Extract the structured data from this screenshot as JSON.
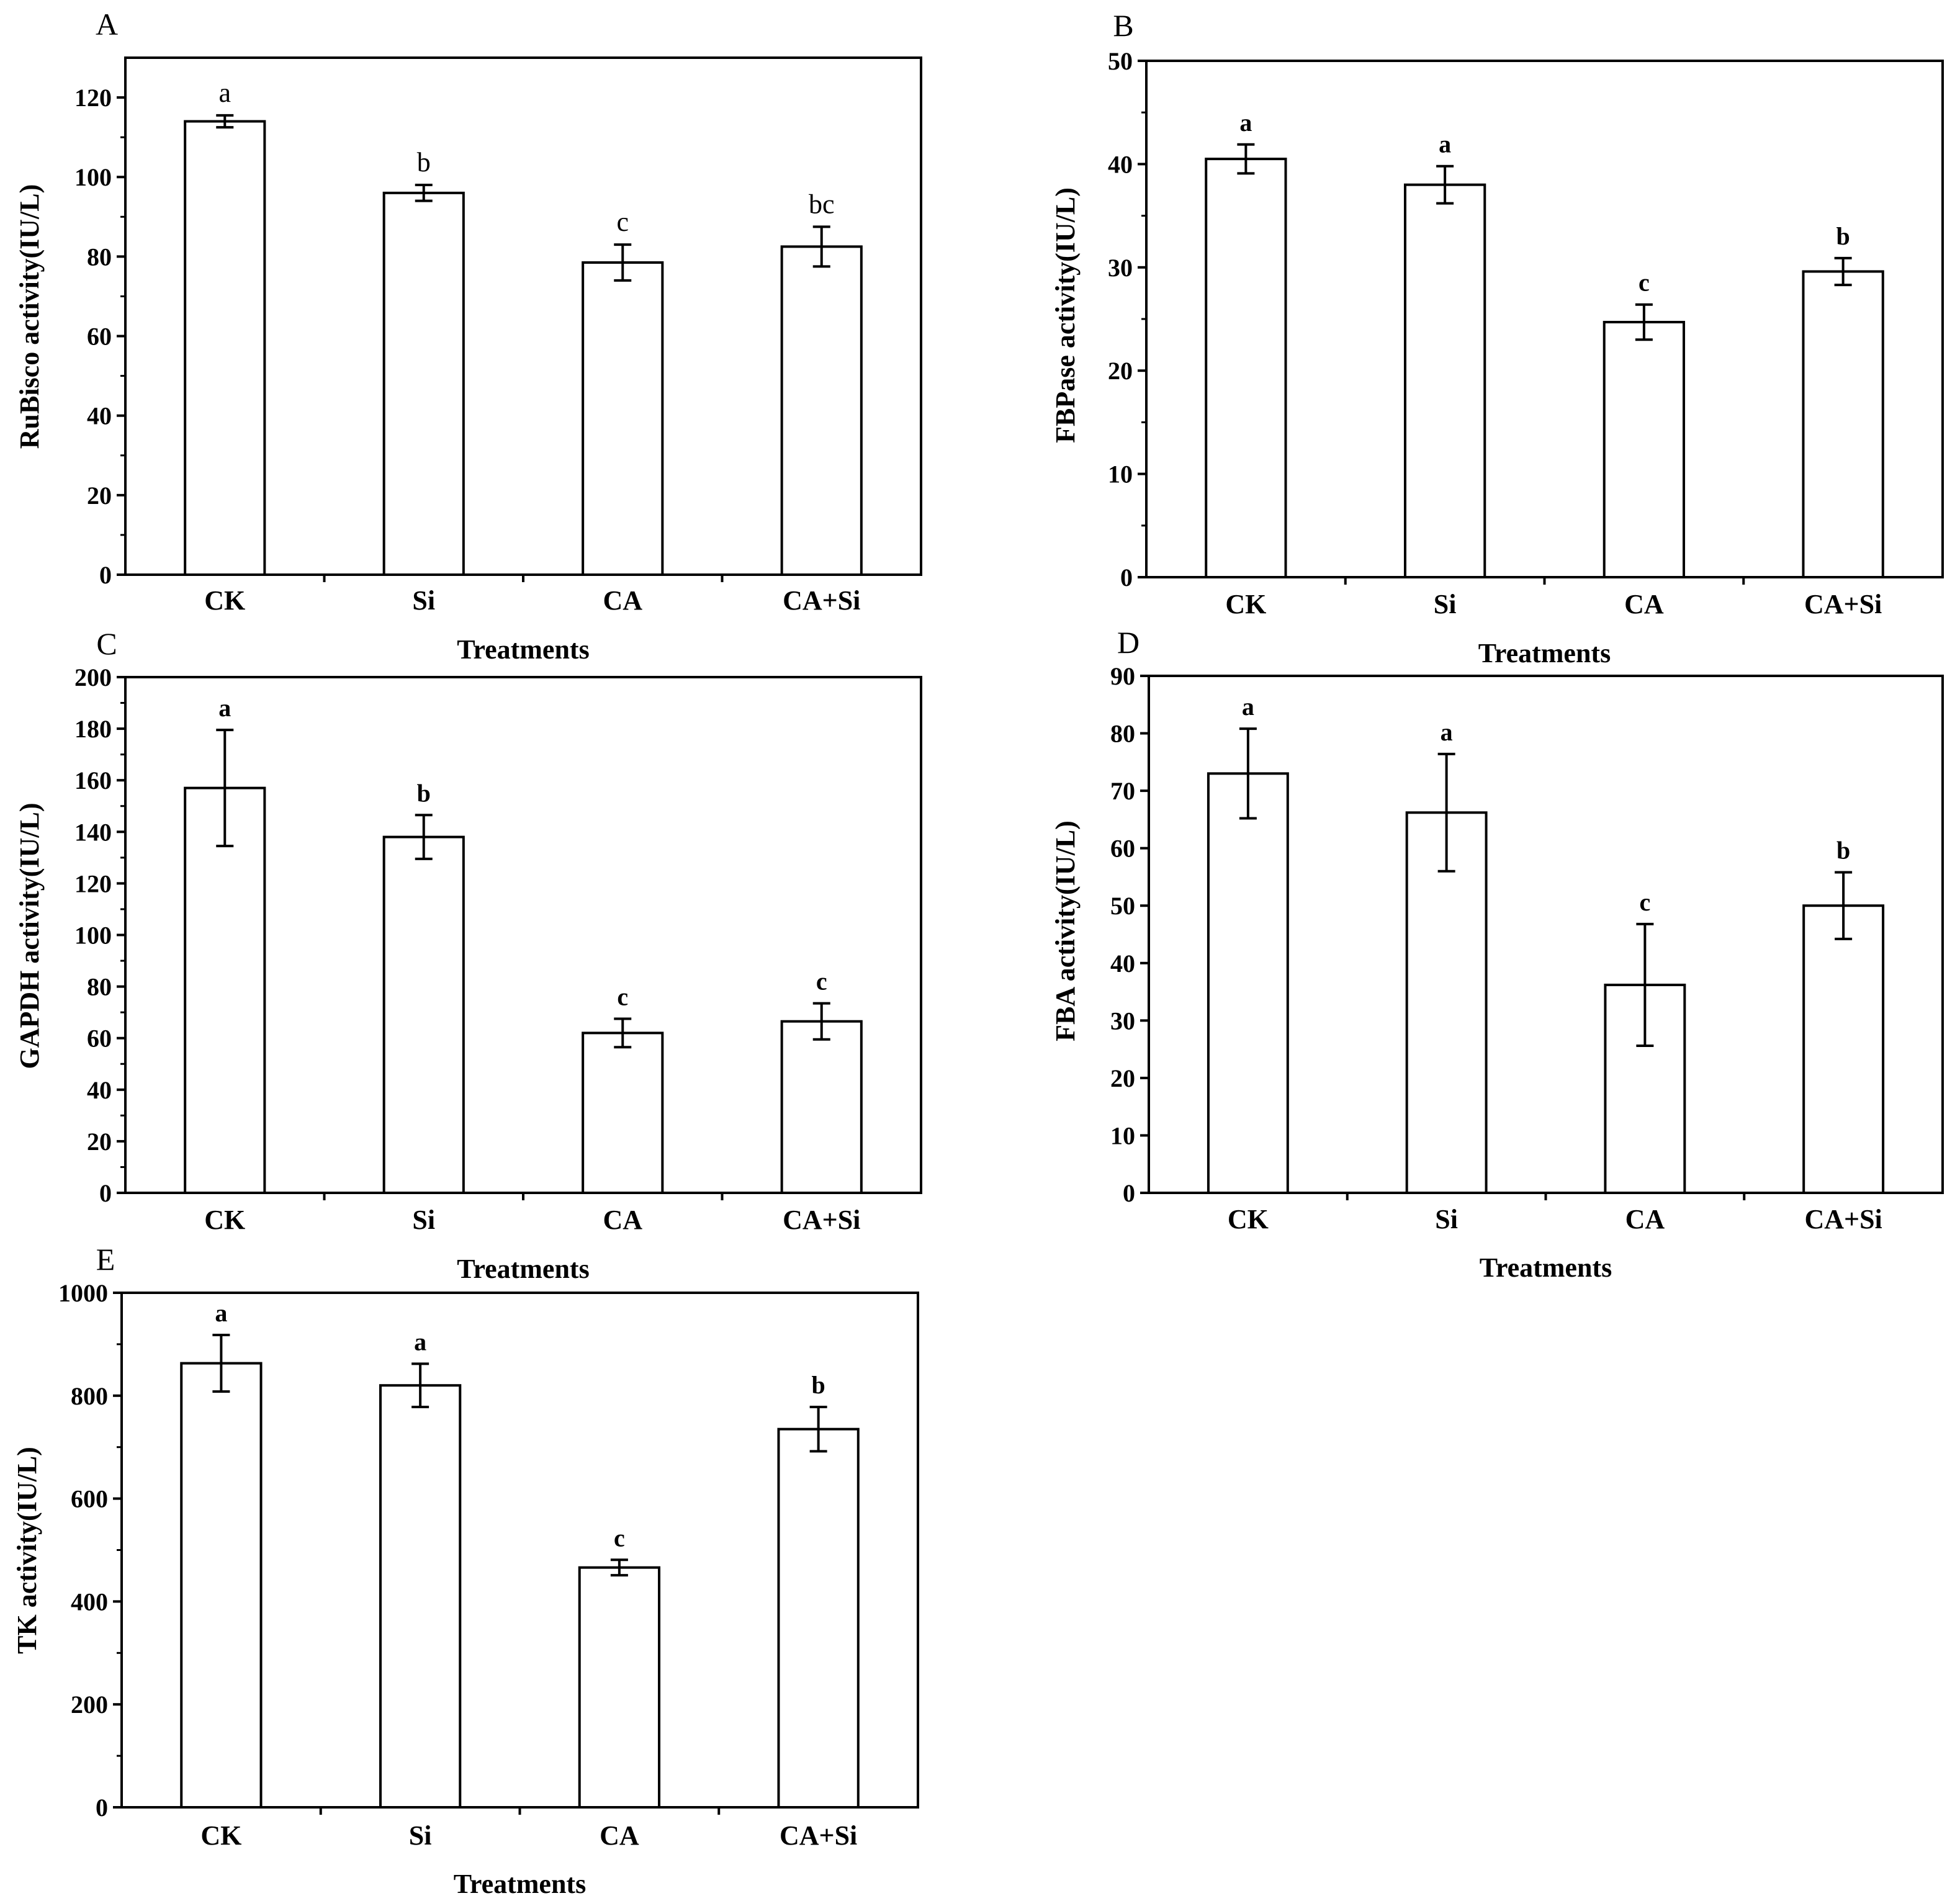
{
  "figure": {
    "colors": {
      "bar_fill": "#ffffff",
      "bar_stroke": "#000000",
      "axis": "#000000",
      "background": "#ffffff"
    }
  },
  "chart_data": [
    {
      "panel_label": "A",
      "type": "bar",
      "title": "",
      "categories": [
        "CK",
        "Si",
        "CA",
        "CA+Si"
      ],
      "values": [
        114,
        96,
        78.5,
        82.5
      ],
      "errors": [
        1.5,
        2,
        4.5,
        5
      ],
      "significance_letters": [
        "a",
        "b",
        "c",
        "bc"
      ],
      "letter_style": "normal",
      "xlabel": "Treatments",
      "ylabel": "RuBisco activity(IU/L)",
      "ylim": [
        0,
        130
      ],
      "yticks": [
        0,
        20,
        40,
        60,
        80,
        100,
        120
      ],
      "ytick_labels": [
        "0",
        "20",
        "40",
        "60",
        "80",
        "100",
        "120"
      ],
      "minor_ticks": true
    },
    {
      "panel_label": "B",
      "type": "bar",
      "title": "",
      "categories": [
        "CK",
        "Si",
        "CA",
        "CA+Si"
      ],
      "values": [
        40.5,
        38,
        24.7,
        29.6
      ],
      "errors": [
        1.4,
        1.8,
        1.7,
        1.3
      ],
      "significance_letters": [
        "a",
        "a",
        "c",
        "b"
      ],
      "letter_style": "bold",
      "xlabel": "Treatments",
      "ylabel": "FBPase activity(IU/L)",
      "ylim": [
        0,
        50
      ],
      "yticks": [
        0,
        10,
        20,
        30,
        40,
        50
      ],
      "ytick_labels": [
        "0",
        "10",
        "20",
        "30",
        "40",
        "50"
      ],
      "minor_ticks": true
    },
    {
      "panel_label": "C",
      "type": "bar",
      "title": "",
      "categories": [
        "CK",
        "Si",
        "CA",
        "CA+Si"
      ],
      "values": [
        157,
        138,
        62,
        66.5
      ],
      "errors": [
        22.5,
        8.5,
        5.5,
        7
      ],
      "significance_letters": [
        "a",
        "b",
        "c",
        "c"
      ],
      "letter_style": "bold",
      "xlabel": "Treatments",
      "ylabel": "GAPDH activity(IU/L)",
      "ylim": [
        0,
        200
      ],
      "yticks": [
        0,
        20,
        40,
        60,
        80,
        100,
        120,
        140,
        160,
        180,
        200
      ],
      "ytick_labels": [
        "0",
        "20",
        "40",
        "60",
        "80",
        "100",
        "120",
        "140",
        "160",
        "180",
        "200"
      ],
      "minor_ticks": true
    },
    {
      "panel_label": "D",
      "type": "bar",
      "title": "",
      "categories": [
        "CK",
        "Si",
        "CA",
        "CA+Si"
      ],
      "values": [
        73,
        66.2,
        36.2,
        50
      ],
      "errors": [
        7.8,
        10.2,
        10.6,
        5.8
      ],
      "significance_letters": [
        "a",
        "a",
        "c",
        "b"
      ],
      "letter_style": "bold",
      "xlabel": "Treatments",
      "ylabel": "FBA activity(IU/L)",
      "ylim": [
        0,
        90
      ],
      "yticks": [
        0,
        10,
        20,
        30,
        40,
        50,
        60,
        70,
        80,
        90
      ],
      "ytick_labels": [
        "0",
        "10",
        "20",
        "30",
        "40",
        "50",
        "60",
        "70",
        "80",
        "90"
      ],
      "minor_ticks": false
    },
    {
      "panel_label": "E",
      "type": "bar",
      "title": "",
      "categories": [
        "CK",
        "Si",
        "CA",
        "CA+Si"
      ],
      "values": [
        863,
        820,
        466,
        735
      ],
      "errors": [
        55,
        42,
        15,
        43
      ],
      "significance_letters": [
        "a",
        "a",
        "c",
        "b"
      ],
      "letter_style": "bold",
      "xlabel": "Treatments",
      "ylabel": "TK activity(IU/L)",
      "ylim": [
        0,
        1000
      ],
      "yticks": [
        0,
        200,
        400,
        600,
        800,
        1000
      ],
      "ytick_labels": [
        "0",
        "200",
        "400",
        "600",
        "800",
        "1000"
      ],
      "minor_ticks": true
    }
  ]
}
